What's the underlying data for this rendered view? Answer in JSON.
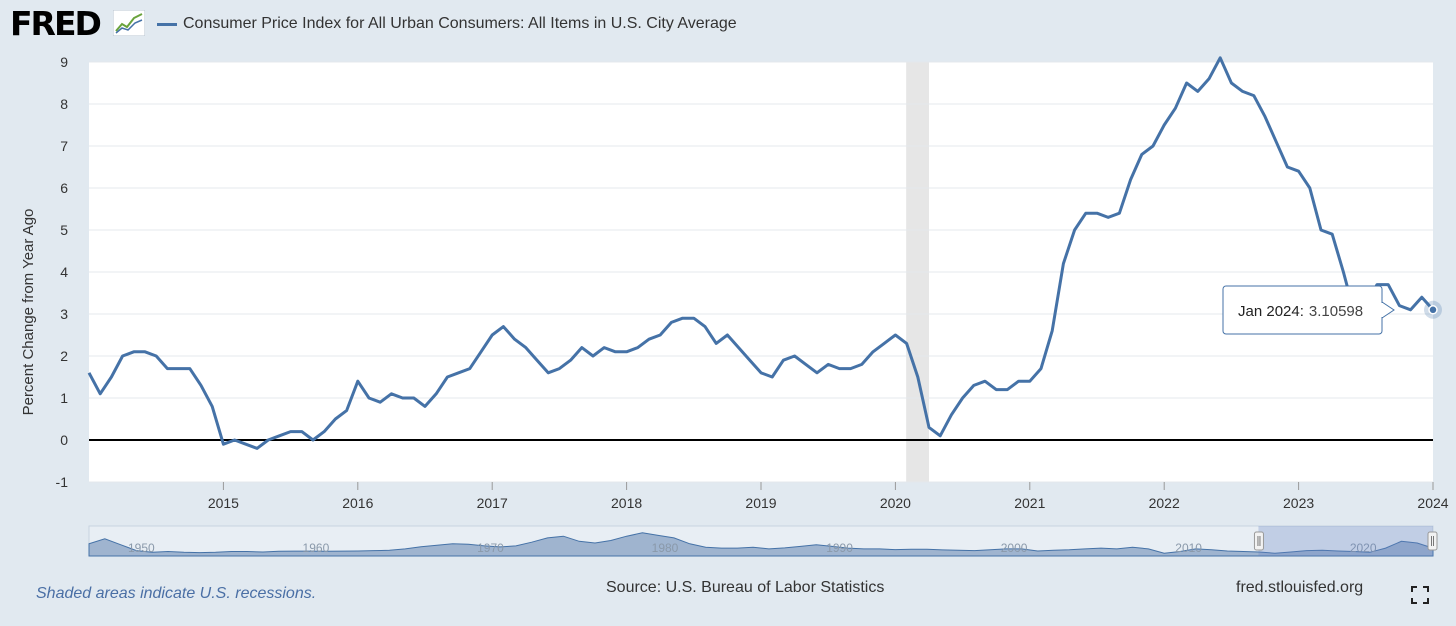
{
  "header": {
    "logo_text": "FRED",
    "logo_icon": "trend-chart-icon",
    "series_title": "Consumer Price Index for All Urban Consumers: All Items in U.S. City Average"
  },
  "chart_data": {
    "type": "line",
    "ylabel": "Percent Change from Year Ago",
    "ylim": [
      -1,
      9
    ],
    "y_ticks": [
      "-1",
      "0",
      "1",
      "2",
      "3",
      "4",
      "5",
      "6",
      "7",
      "8",
      "9"
    ],
    "x_start": 2014.0,
    "x_end": 2024.0,
    "x_step": 0.0833333,
    "x_ticks": [
      "2015",
      "2016",
      "2017",
      "2018",
      "2019",
      "2020",
      "2021",
      "2022",
      "2023",
      "2024"
    ],
    "series": [
      {
        "values": [
          1.6,
          1.1,
          1.5,
          2.0,
          2.1,
          2.1,
          2.0,
          1.7,
          1.7,
          1.7,
          1.3,
          0.8,
          -0.1,
          0.0,
          -0.1,
          -0.2,
          0.0,
          0.1,
          0.2,
          0.2,
          0.0,
          0.2,
          0.5,
          0.7,
          1.4,
          1.0,
          0.9,
          1.1,
          1.0,
          1.0,
          0.8,
          1.1,
          1.5,
          1.6,
          1.7,
          2.1,
          2.5,
          2.7,
          2.4,
          2.2,
          1.9,
          1.6,
          1.7,
          1.9,
          2.2,
          2.0,
          2.2,
          2.1,
          2.1,
          2.2,
          2.4,
          2.5,
          2.8,
          2.9,
          2.9,
          2.7,
          2.3,
          2.5,
          2.2,
          1.9,
          1.6,
          1.5,
          1.9,
          2.0,
          1.8,
          1.6,
          1.8,
          1.7,
          1.7,
          1.8,
          2.1,
          2.3,
          2.5,
          2.3,
          1.5,
          0.3,
          0.1,
          0.6,
          1.0,
          1.3,
          1.4,
          1.2,
          1.2,
          1.4,
          1.4,
          1.7,
          2.6,
          4.2,
          5.0,
          5.4,
          5.4,
          5.3,
          5.4,
          6.2,
          6.8,
          7.0,
          7.5,
          7.9,
          8.5,
          8.3,
          8.6,
          9.1,
          8.5,
          8.3,
          8.2,
          7.7,
          7.1,
          6.5,
          6.4,
          6.0,
          5.0,
          4.9,
          4.0,
          3.0,
          3.2,
          3.7,
          3.7,
          3.2,
          3.1,
          3.4,
          3.1
        ],
        "color": "#4572a7"
      }
    ],
    "recession": {
      "start": 2020.08,
      "end": 2020.25,
      "color": "#e6e6e6"
    },
    "tooltip": {
      "date_label": "Jan 2024:",
      "value_label": "3.10598"
    },
    "navigator": {
      "labels": [
        "1950",
        "1960",
        "1970",
        "1980",
        "1990",
        "2000",
        "2010",
        "2020"
      ],
      "range_start": 1947,
      "range_end": 2024,
      "selected_start": 2014,
      "selected_end": 2024,
      "values": [
        6.0,
        9.0,
        5.5,
        2.0,
        1.0,
        1.5,
        1.0,
        0.8,
        1.0,
        1.5,
        1.5,
        1.2,
        1.6,
        1.7,
        1.7,
        1.6,
        1.7,
        1.8,
        2.0,
        2.2,
        3.0,
        4.3,
        5.2,
        6.0,
        5.8,
        4.8,
        4.2,
        4.8,
        7.0,
        9.5,
        10.5,
        7.5,
        6.5,
        8.0,
        10.5,
        12.5,
        11.0,
        9.5,
        6.0,
        4.0,
        3.5,
        3.5,
        4.0,
        3.0,
        3.6,
        4.5,
        5.5,
        4.5,
        3.5,
        3.0,
        3.0,
        2.6,
        2.8,
        2.8,
        2.4,
        2.2,
        2.0,
        2.5,
        3.0,
        3.0,
        1.8,
        2.2,
        2.5,
        3.0,
        3.5,
        3.0,
        4.0,
        3.0,
        0.5,
        1.5,
        3.0,
        2.5,
        1.8,
        1.5,
        1.2,
        0.5,
        1.2,
        2.0,
        2.2,
        1.8,
        1.5,
        1.0,
        3.5,
        7.5,
        6.5,
        3.5
      ]
    }
  },
  "footer": {
    "recession_note": "Shaded areas indicate U.S. recessions.",
    "source": "Source: U.S. Bureau of Labor Statistics",
    "site": "fred.stlouisfed.org",
    "fullscreen_icon": "fullscreen-icon"
  }
}
